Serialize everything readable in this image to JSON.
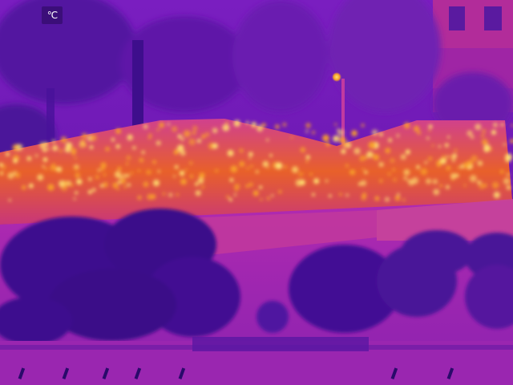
{
  "overlay": {
    "unit_label": "℃"
  },
  "palette": {
    "cold": "#2a0a6a",
    "cool": "#6a18b8",
    "mid": "#a020c0",
    "warm": "#e0509a",
    "hot": "#f89a2a",
    "hottest": "#ffe070"
  }
}
